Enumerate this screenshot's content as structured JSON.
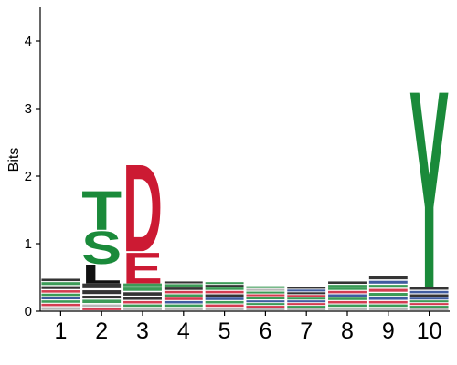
{
  "chart_data": {
    "type": "sequence-logo",
    "title": "",
    "xlabel": "",
    "ylabel": "Bits",
    "ylim": [
      0,
      4.5
    ],
    "y_ticks": [
      "0",
      "1",
      "2",
      "3",
      "4"
    ],
    "positions": [
      "1",
      "2",
      "3",
      "4",
      "5",
      "6",
      "7",
      "8",
      "9",
      "10"
    ],
    "colors": {
      "green": "#1a8a3a",
      "red": "#cc1a33",
      "black": "#111111",
      "blue": "#1f3f8f",
      "gray": "#aaaaaa"
    },
    "stacks": [
      {
        "position": "1",
        "letters": [
          {
            "letter": "",
            "height": 0.06,
            "color": "gray"
          },
          {
            "letter": "",
            "height": 0.05,
            "color": "red"
          },
          {
            "letter": "",
            "height": 0.05,
            "color": "green"
          },
          {
            "letter": "",
            "height": 0.05,
            "color": "blue"
          },
          {
            "letter": "",
            "height": 0.05,
            "color": "green"
          },
          {
            "letter": "",
            "height": 0.05,
            "color": "red"
          },
          {
            "letter": "",
            "height": 0.06,
            "color": "black"
          },
          {
            "letter": "",
            "height": 0.06,
            "color": "green"
          },
          {
            "letter": "",
            "height": 0.05,
            "color": "black"
          }
        ]
      },
      {
        "position": "2",
        "letters": [
          {
            "letter": "",
            "height": 0.05,
            "color": "red"
          },
          {
            "letter": "",
            "height": 0.05,
            "color": "gray"
          },
          {
            "letter": "",
            "height": 0.07,
            "color": "green"
          },
          {
            "letter": "",
            "height": 0.06,
            "color": "black"
          },
          {
            "letter": "",
            "height": 0.08,
            "color": "black"
          },
          {
            "letter": "",
            "height": 0.1,
            "color": "black"
          },
          {
            "letter": "L",
            "height": 0.29,
            "color": "black"
          },
          {
            "letter": "S",
            "height": 0.5,
            "color": "green"
          },
          {
            "letter": "T",
            "height": 0.6,
            "color": "green"
          }
        ]
      },
      {
        "position": "3",
        "letters": [
          {
            "letter": "",
            "height": 0.05,
            "color": "gray"
          },
          {
            "letter": "",
            "height": 0.05,
            "color": "green"
          },
          {
            "letter": "",
            "height": 0.05,
            "color": "red"
          },
          {
            "letter": "",
            "height": 0.06,
            "color": "black"
          },
          {
            "letter": "",
            "height": 0.07,
            "color": "black"
          },
          {
            "letter": "",
            "height": 0.07,
            "color": "green"
          },
          {
            "letter": "",
            "height": 0.06,
            "color": "green"
          },
          {
            "letter": "E",
            "height": 0.48,
            "color": "red"
          },
          {
            "letter": "D",
            "height": 1.35,
            "color": "red"
          }
        ]
      },
      {
        "position": "4",
        "letters": [
          {
            "letter": "",
            "height": 0.05,
            "color": "gray"
          },
          {
            "letter": "",
            "height": 0.05,
            "color": "green"
          },
          {
            "letter": "",
            "height": 0.05,
            "color": "blue"
          },
          {
            "letter": "",
            "height": 0.05,
            "color": "red"
          },
          {
            "letter": "",
            "height": 0.05,
            "color": "green"
          },
          {
            "letter": "",
            "height": 0.05,
            "color": "red"
          },
          {
            "letter": "",
            "height": 0.05,
            "color": "black"
          },
          {
            "letter": "",
            "height": 0.05,
            "color": "green"
          },
          {
            "letter": "",
            "height": 0.04,
            "color": "black"
          }
        ]
      },
      {
        "position": "5",
        "letters": [
          {
            "letter": "",
            "height": 0.05,
            "color": "gray"
          },
          {
            "letter": "",
            "height": 0.05,
            "color": "red"
          },
          {
            "letter": "",
            "height": 0.05,
            "color": "green"
          },
          {
            "letter": "",
            "height": 0.05,
            "color": "blue"
          },
          {
            "letter": "",
            "height": 0.05,
            "color": "black"
          },
          {
            "letter": "",
            "height": 0.05,
            "color": "red"
          },
          {
            "letter": "",
            "height": 0.05,
            "color": "green"
          },
          {
            "letter": "",
            "height": 0.04,
            "color": "black"
          },
          {
            "letter": "",
            "height": 0.04,
            "color": "green"
          }
        ]
      },
      {
        "position": "6",
        "letters": [
          {
            "letter": "",
            "height": 0.04,
            "color": "gray"
          },
          {
            "letter": "",
            "height": 0.04,
            "color": "red"
          },
          {
            "letter": "",
            "height": 0.04,
            "color": "green"
          },
          {
            "letter": "",
            "height": 0.04,
            "color": "blue"
          },
          {
            "letter": "",
            "height": 0.05,
            "color": "green"
          },
          {
            "letter": "",
            "height": 0.04,
            "color": "red"
          },
          {
            "letter": "",
            "height": 0.04,
            "color": "green"
          },
          {
            "letter": "",
            "height": 0.04,
            "color": "gray"
          },
          {
            "letter": "",
            "height": 0.04,
            "color": "green"
          }
        ]
      },
      {
        "position": "7",
        "letters": [
          {
            "letter": "",
            "height": 0.04,
            "color": "gray"
          },
          {
            "letter": "",
            "height": 0.04,
            "color": "green"
          },
          {
            "letter": "",
            "height": 0.04,
            "color": "red"
          },
          {
            "letter": "",
            "height": 0.04,
            "color": "blue"
          },
          {
            "letter": "",
            "height": 0.04,
            "color": "green"
          },
          {
            "letter": "",
            "height": 0.04,
            "color": "red"
          },
          {
            "letter": "",
            "height": 0.04,
            "color": "black"
          },
          {
            "letter": "",
            "height": 0.04,
            "color": "blue"
          },
          {
            "letter": "",
            "height": 0.04,
            "color": "black"
          }
        ]
      },
      {
        "position": "8",
        "letters": [
          {
            "letter": "",
            "height": 0.05,
            "color": "gray"
          },
          {
            "letter": "",
            "height": 0.05,
            "color": "green"
          },
          {
            "letter": "",
            "height": 0.05,
            "color": "red"
          },
          {
            "letter": "",
            "height": 0.05,
            "color": "green"
          },
          {
            "letter": "",
            "height": 0.05,
            "color": "blue"
          },
          {
            "letter": "",
            "height": 0.05,
            "color": "red"
          },
          {
            "letter": "",
            "height": 0.05,
            "color": "green"
          },
          {
            "letter": "",
            "height": 0.04,
            "color": "green"
          },
          {
            "letter": "",
            "height": 0.05,
            "color": "black"
          }
        ]
      },
      {
        "position": "9",
        "letters": [
          {
            "letter": "",
            "height": 0.05,
            "color": "gray"
          },
          {
            "letter": "",
            "height": 0.05,
            "color": "green"
          },
          {
            "letter": "",
            "height": 0.05,
            "color": "red"
          },
          {
            "letter": "",
            "height": 0.06,
            "color": "blue"
          },
          {
            "letter": "",
            "height": 0.06,
            "color": "green"
          },
          {
            "letter": "",
            "height": 0.06,
            "color": "red"
          },
          {
            "letter": "",
            "height": 0.06,
            "color": "green"
          },
          {
            "letter": "",
            "height": 0.06,
            "color": "blue"
          },
          {
            "letter": "",
            "height": 0.07,
            "color": "black"
          }
        ]
      },
      {
        "position": "10",
        "letters": [
          {
            "letter": "",
            "height": 0.04,
            "color": "gray"
          },
          {
            "letter": "",
            "height": 0.04,
            "color": "green"
          },
          {
            "letter": "",
            "height": 0.04,
            "color": "red"
          },
          {
            "letter": "",
            "height": 0.04,
            "color": "green"
          },
          {
            "letter": "",
            "height": 0.04,
            "color": "blue"
          },
          {
            "letter": "",
            "height": 0.05,
            "color": "black"
          },
          {
            "letter": "",
            "height": 0.05,
            "color": "blue"
          },
          {
            "letter": "",
            "height": 0.06,
            "color": "black"
          },
          {
            "letter": "Y",
            "height": 3.05,
            "color": "green"
          }
        ]
      }
    ]
  }
}
